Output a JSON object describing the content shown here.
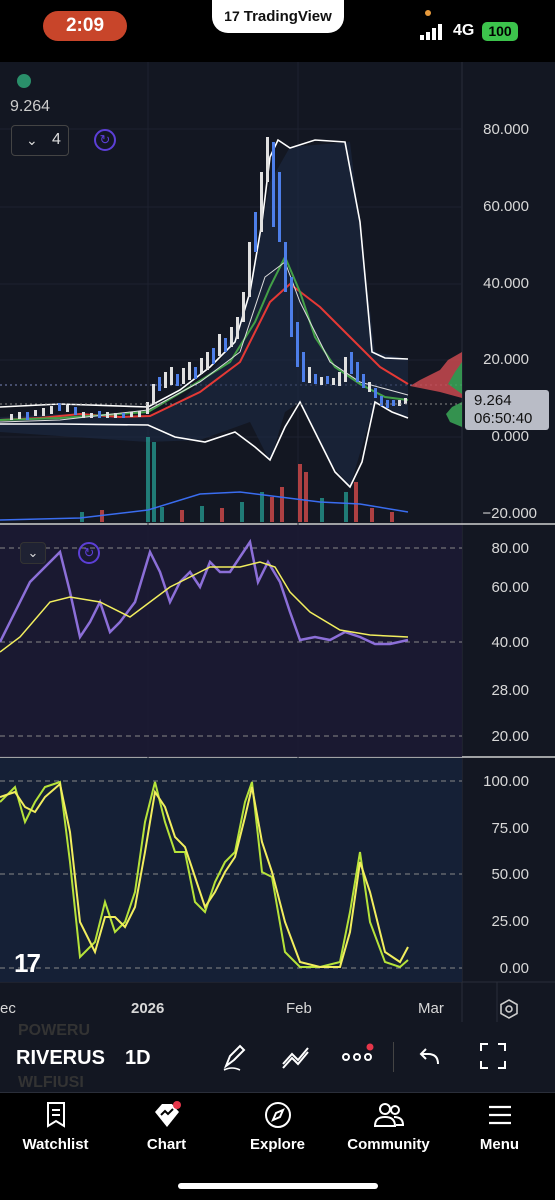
{
  "status_bar": {
    "time": "2:09",
    "network": "4G",
    "battery": "100",
    "brand": "TradingView"
  },
  "main_pane": {
    "price_label": "9.264",
    "indicator_count": "4",
    "price_tag": "9.264",
    "countdown": "06:50:40",
    "axis_ticks": [
      "80.000",
      "60.000",
      "40.000",
      "20.000",
      "0.000",
      "−20.000"
    ]
  },
  "rsi_pane": {
    "axis_ticks": [
      "80.00",
      "60.00",
      "40.00",
      "28.00",
      "20.00"
    ]
  },
  "stoch_pane": {
    "axis_ticks": [
      "100.00",
      "75.00",
      "50.00",
      "25.00",
      "0.00"
    ]
  },
  "time_axis": {
    "labels": [
      "ec",
      "2026",
      "Feb",
      "Mar"
    ]
  },
  "symbol_bar": {
    "ghost_top": "POWERU",
    "symbol": "RIVERUS",
    "ghost_bottom": "WLFIUSI",
    "interval": "1D"
  },
  "bottom_nav": [
    {
      "label": "Watchlist",
      "icon": "watchlist-icon"
    },
    {
      "label": "Chart",
      "icon": "chart-icon"
    },
    {
      "label": "Explore",
      "icon": "compass-icon"
    },
    {
      "label": "Community",
      "icon": "community-icon"
    },
    {
      "label": "Menu",
      "icon": "menu-icon"
    }
  ],
  "colors": {
    "background": "#131722",
    "candle_up": "#e0e0e0",
    "candle_down": "#4d7ee8",
    "rsi": "#8c6fd8",
    "stoch_k": "#b6e33a",
    "stoch_d": "#f2ee5e",
    "accent_time": "#c8452a",
    "bollinger": "#ffffff",
    "ma_red": "#e53935",
    "ma_green": "#43a047"
  }
}
